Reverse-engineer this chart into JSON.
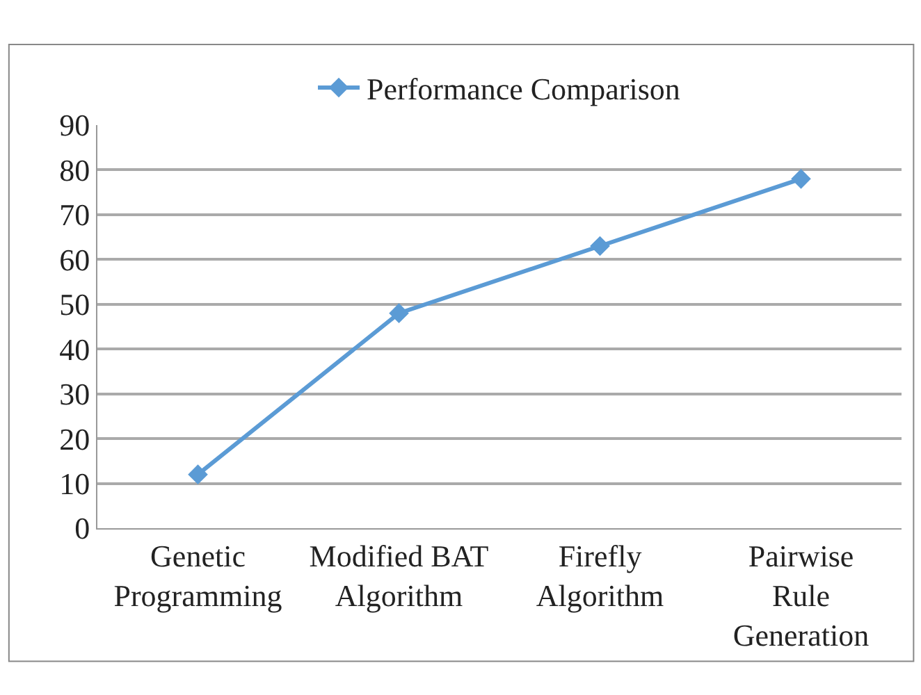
{
  "chart_data": {
    "type": "line",
    "categories": [
      "Genetic\nProgramming",
      "Modified BAT\nAlgorithm",
      "Firefly\nAlgorithm",
      "Pairwise\nRule\nGeneration"
    ],
    "series": [
      {
        "name": "Performance Comparison",
        "color": "#5b9bd5",
        "values": [
          12,
          48,
          63,
          78
        ]
      }
    ],
    "ylim": [
      0,
      90
    ],
    "yticks": [
      0,
      10,
      20,
      30,
      40,
      50,
      60,
      70,
      80,
      90
    ],
    "grid": "y",
    "legend": "top",
    "marker": "diamond",
    "line_style": "solid"
  }
}
